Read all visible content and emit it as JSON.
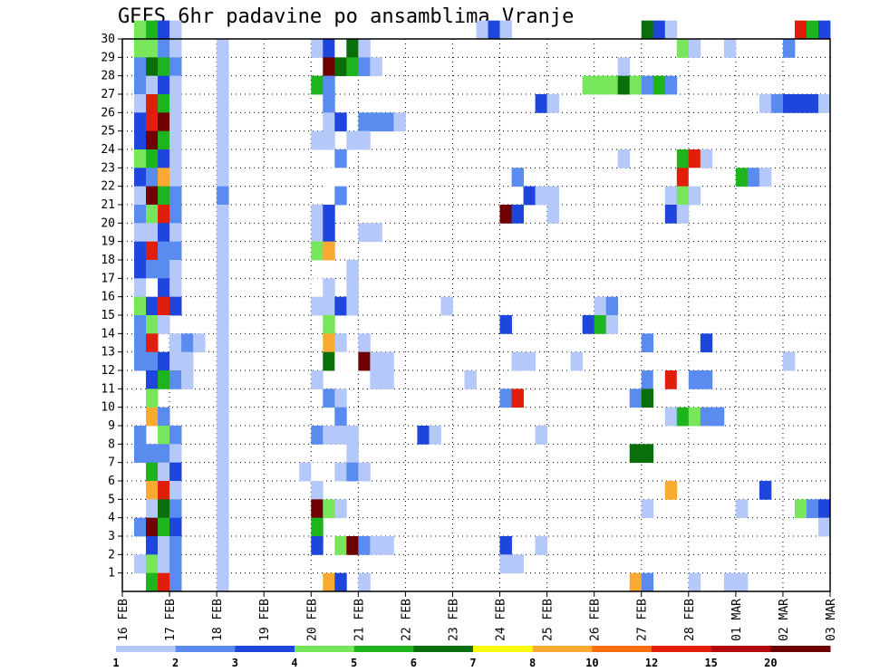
{
  "chart_data": {
    "type": "heatmap",
    "title": "GEFS 6hr padavine po ansamblima Vranje",
    "xlabel": "",
    "ylabel": "",
    "x_ticks": [
      "16 FEB",
      "17 FEB",
      "18 FEB",
      "19 FEB",
      "20 FEB",
      "21 FEB",
      "22 FEB",
      "23 FEB",
      "24 FEB",
      "25 FEB",
      "26 FEB",
      "27 FEB",
      "28 FEB",
      "01 MAR",
      "02 MAR",
      "03 MAR"
    ],
    "y_ticks": [
      "1",
      "2",
      "3",
      "4",
      "5",
      "6",
      "7",
      "8",
      "9",
      "10",
      "11",
      "12",
      "13",
      "14",
      "15",
      "16",
      "17",
      "18",
      "19",
      "20",
      "21",
      "22",
      "23",
      "24",
      "25",
      "26",
      "27",
      "28",
      "29",
      "30"
    ],
    "xlim": [
      0,
      60
    ],
    "ylim": [
      0,
      30
    ],
    "colorbar": {
      "labels": [
        "1",
        "2",
        "3",
        "4",
        "5",
        "6",
        "7",
        "8",
        "10",
        "12",
        "15",
        "20"
      ],
      "colors": [
        "#b4c8fa",
        "#5a8cf0",
        "#1e46dc",
        "#78e65a",
        "#1eb41e",
        "#0a6e0a",
        "#fafa0a",
        "#faaa32",
        "#fa6e0a",
        "#e11e0a",
        "#b40a0a",
        "#6e0000"
      ]
    },
    "cells": [
      [
        1,
        30,
        4
      ],
      [
        2,
        30,
        5
      ],
      [
        3,
        30,
        3
      ],
      [
        4,
        30,
        1
      ],
      [
        30,
        30,
        1
      ],
      [
        31,
        30,
        3
      ],
      [
        32,
        30,
        1
      ],
      [
        44,
        30,
        6
      ],
      [
        45,
        30,
        3
      ],
      [
        46,
        30,
        1
      ],
      [
        57,
        30,
        10
      ],
      [
        58,
        30,
        5
      ],
      [
        59,
        30,
        3
      ],
      [
        1,
        29,
        4
      ],
      [
        2,
        29,
        4
      ],
      [
        3,
        29,
        2
      ],
      [
        4,
        29,
        1
      ],
      [
        8,
        29,
        1
      ],
      [
        16,
        29,
        1
      ],
      [
        17,
        29,
        3
      ],
      [
        18,
        29,
        15
      ],
      [
        19,
        29,
        6
      ],
      [
        20,
        29,
        1
      ],
      [
        47,
        29,
        4
      ],
      [
        48,
        29,
        1
      ],
      [
        51,
        29,
        1
      ],
      [
        56,
        29,
        2
      ],
      [
        1,
        28,
        2
      ],
      [
        2,
        28,
        6
      ],
      [
        3,
        28,
        5
      ],
      [
        4,
        28,
        2
      ],
      [
        8,
        28,
        1
      ],
      [
        17,
        28,
        12
      ],
      [
        18,
        28,
        6
      ],
      [
        19,
        28,
        5
      ],
      [
        20,
        28,
        2
      ],
      [
        21,
        28,
        1
      ],
      [
        42,
        28,
        1
      ],
      [
        1,
        27,
        2
      ],
      [
        2,
        27,
        1
      ],
      [
        3,
        27,
        3
      ],
      [
        4,
        27,
        1
      ],
      [
        8,
        27,
        1
      ],
      [
        16,
        27,
        5
      ],
      [
        17,
        27,
        2
      ],
      [
        39,
        27,
        4
      ],
      [
        40,
        27,
        4
      ],
      [
        41,
        27,
        4
      ],
      [
        42,
        27,
        6
      ],
      [
        43,
        27,
        4
      ],
      [
        44,
        27,
        2
      ],
      [
        45,
        27,
        5
      ],
      [
        46,
        27,
        2
      ],
      [
        1,
        26,
        1
      ],
      [
        2,
        26,
        10
      ],
      [
        3,
        26,
        5
      ],
      [
        4,
        26,
        1
      ],
      [
        8,
        26,
        1
      ],
      [
        17,
        26,
        2
      ],
      [
        35,
        26,
        3
      ],
      [
        36,
        26,
        1
      ],
      [
        54,
        26,
        1
      ],
      [
        55,
        26,
        2
      ],
      [
        56,
        26,
        3
      ],
      [
        57,
        26,
        3
      ],
      [
        58,
        26,
        3
      ],
      [
        59,
        26,
        1
      ],
      [
        1,
        25,
        3
      ],
      [
        2,
        25,
        10
      ],
      [
        3,
        25,
        12
      ],
      [
        4,
        25,
        1
      ],
      [
        8,
        25,
        1
      ],
      [
        17,
        25,
        1
      ],
      [
        18,
        25,
        3
      ],
      [
        20,
        25,
        2
      ],
      [
        21,
        25,
        2
      ],
      [
        22,
        25,
        2
      ],
      [
        23,
        25,
        1
      ],
      [
        1,
        24,
        3
      ],
      [
        2,
        24,
        12
      ],
      [
        3,
        24,
        5
      ],
      [
        4,
        24,
        1
      ],
      [
        8,
        24,
        1
      ],
      [
        16,
        24,
        1
      ],
      [
        17,
        24,
        1
      ],
      [
        19,
        24,
        1
      ],
      [
        20,
        24,
        1
      ],
      [
        1,
        23,
        4
      ],
      [
        2,
        23,
        5
      ],
      [
        3,
        23,
        3
      ],
      [
        4,
        23,
        1
      ],
      [
        8,
        23,
        1
      ],
      [
        18,
        23,
        2
      ],
      [
        42,
        23,
        1
      ],
      [
        47,
        23,
        5
      ],
      [
        48,
        23,
        10
      ],
      [
        49,
        23,
        1
      ],
      [
        1,
        22,
        3
      ],
      [
        2,
        22,
        2
      ],
      [
        3,
        22,
        8
      ],
      [
        4,
        22,
        1
      ],
      [
        8,
        22,
        1
      ],
      [
        17,
        22,
        20
      ],
      [
        18,
        22,
        20
      ],
      [
        33,
        22,
        2
      ],
      [
        47,
        22,
        10
      ],
      [
        48,
        22,
        15
      ],
      [
        52,
        22,
        5
      ],
      [
        53,
        22,
        2
      ],
      [
        54,
        22,
        1
      ],
      [
        1,
        21,
        1
      ],
      [
        2,
        21,
        12
      ],
      [
        3,
        21,
        5
      ],
      [
        4,
        21,
        2
      ],
      [
        8,
        21,
        2
      ],
      [
        17,
        21,
        15
      ],
      [
        18,
        21,
        2
      ],
      [
        34,
        21,
        3
      ],
      [
        35,
        21,
        1
      ],
      [
        36,
        21,
        1
      ],
      [
        46,
        21,
        1
      ],
      [
        47,
        21,
        4
      ],
      [
        48,
        21,
        1
      ],
      [
        1,
        20,
        2
      ],
      [
        2,
        20,
        4
      ],
      [
        3,
        20,
        10
      ],
      [
        4,
        20,
        2
      ],
      [
        8,
        20,
        1
      ],
      [
        16,
        20,
        1
      ],
      [
        17,
        20,
        3
      ],
      [
        32,
        20,
        12
      ],
      [
        33,
        20,
        3
      ],
      [
        36,
        20,
        1
      ],
      [
        46,
        20,
        3
      ],
      [
        47,
        20,
        1
      ],
      [
        1,
        19,
        1
      ],
      [
        2,
        19,
        1
      ],
      [
        3,
        19,
        3
      ],
      [
        4,
        19,
        1
      ],
      [
        8,
        19,
        1
      ],
      [
        16,
        19,
        1
      ],
      [
        17,
        19,
        3
      ],
      [
        20,
        19,
        1
      ],
      [
        21,
        19,
        1
      ],
      [
        1,
        18,
        3
      ],
      [
        2,
        18,
        10
      ],
      [
        3,
        18,
        2
      ],
      [
        4,
        18,
        2
      ],
      [
        8,
        18,
        1
      ],
      [
        16,
        18,
        4
      ],
      [
        17,
        18,
        8
      ],
      [
        1,
        17,
        3
      ],
      [
        2,
        17,
        2
      ],
      [
        3,
        17,
        2
      ],
      [
        4,
        17,
        1
      ],
      [
        8,
        17,
        1
      ],
      [
        19,
        17,
        1
      ],
      [
        1,
        16,
        1
      ],
      [
        2,
        16,
        15
      ],
      [
        3,
        16,
        3
      ],
      [
        4,
        16,
        1
      ],
      [
        8,
        16,
        1
      ],
      [
        16,
        16,
        20
      ],
      [
        17,
        16,
        1
      ],
      [
        19,
        16,
        1
      ],
      [
        1,
        15,
        4
      ],
      [
        2,
        15,
        3
      ],
      [
        3,
        15,
        10
      ],
      [
        4,
        15,
        3
      ],
      [
        8,
        15,
        1
      ],
      [
        16,
        15,
        1
      ],
      [
        17,
        15,
        1
      ],
      [
        18,
        15,
        3
      ],
      [
        19,
        15,
        1
      ],
      [
        27,
        15,
        1
      ],
      [
        40,
        15,
        1
      ],
      [
        41,
        15,
        2
      ],
      [
        1,
        14,
        2
      ],
      [
        2,
        14,
        4
      ],
      [
        3,
        14,
        1
      ],
      [
        8,
        14,
        1
      ],
      [
        17,
        14,
        4
      ],
      [
        32,
        14,
        3
      ],
      [
        39,
        14,
        3
      ],
      [
        40,
        14,
        5
      ],
      [
        41,
        14,
        1
      ],
      [
        1,
        13,
        2
      ],
      [
        2,
        13,
        10
      ],
      [
        4,
        13,
        1
      ],
      [
        5,
        13,
        2
      ],
      [
        6,
        13,
        1
      ],
      [
        8,
        13,
        1
      ],
      [
        17,
        13,
        8
      ],
      [
        18,
        13,
        1
      ],
      [
        20,
        13,
        1
      ],
      [
        44,
        13,
        2
      ],
      [
        49,
        13,
        3
      ],
      [
        1,
        12,
        2
      ],
      [
        2,
        12,
        2
      ],
      [
        3,
        12,
        3
      ],
      [
        4,
        12,
        1
      ],
      [
        5,
        12,
        1
      ],
      [
        8,
        12,
        1
      ],
      [
        17,
        12,
        6
      ],
      [
        18,
        12,
        20
      ],
      [
        19,
        12,
        15
      ],
      [
        20,
        12,
        12
      ],
      [
        21,
        12,
        1
      ],
      [
        22,
        12,
        1
      ],
      [
        33,
        12,
        1
      ],
      [
        34,
        12,
        1
      ],
      [
        38,
        12,
        1
      ],
      [
        56,
        12,
        1
      ],
      [
        2,
        11,
        3
      ],
      [
        3,
        11,
        5
      ],
      [
        4,
        11,
        2
      ],
      [
        5,
        11,
        1
      ],
      [
        8,
        11,
        1
      ],
      [
        16,
        11,
        1
      ],
      [
        21,
        11,
        1
      ],
      [
        22,
        11,
        1
      ],
      [
        29,
        11,
        1
      ],
      [
        44,
        11,
        2
      ],
      [
        45,
        11,
        15
      ],
      [
        46,
        11,
        10
      ],
      [
        47,
        11,
        15
      ],
      [
        48,
        11,
        2
      ],
      [
        49,
        11,
        2
      ],
      [
        2,
        10,
        4
      ],
      [
        8,
        10,
        1
      ],
      [
        17,
        10,
        2
      ],
      [
        18,
        10,
        1
      ],
      [
        32,
        10,
        2
      ],
      [
        33,
        10,
        10
      ],
      [
        43,
        10,
        2
      ],
      [
        44,
        10,
        6
      ],
      [
        2,
        9,
        8
      ],
      [
        3,
        9,
        2
      ],
      [
        8,
        9,
        1
      ],
      [
        18,
        9,
        2
      ],
      [
        46,
        9,
        1
      ],
      [
        47,
        9,
        5
      ],
      [
        48,
        9,
        4
      ],
      [
        49,
        9,
        2
      ],
      [
        50,
        9,
        2
      ],
      [
        1,
        8,
        2
      ],
      [
        3,
        8,
        4
      ],
      [
        4,
        8,
        2
      ],
      [
        8,
        8,
        1
      ],
      [
        16,
        8,
        2
      ],
      [
        17,
        8,
        1
      ],
      [
        18,
        8,
        1
      ],
      [
        19,
        8,
        1
      ],
      [
        25,
        8,
        3
      ],
      [
        26,
        8,
        1
      ],
      [
        35,
        8,
        1
      ],
      [
        1,
        7,
        2
      ],
      [
        2,
        7,
        2
      ],
      [
        3,
        7,
        2
      ],
      [
        4,
        7,
        1
      ],
      [
        8,
        7,
        1
      ],
      [
        19,
        7,
        1
      ],
      [
        43,
        7,
        6
      ],
      [
        44,
        7,
        6
      ],
      [
        2,
        6,
        5
      ],
      [
        3,
        6,
        1
      ],
      [
        4,
        6,
        3
      ],
      [
        8,
        6,
        1
      ],
      [
        15,
        6,
        1
      ],
      [
        16,
        6,
        15
      ],
      [
        18,
        6,
        1
      ],
      [
        19,
        6,
        2
      ],
      [
        20,
        6,
        1
      ],
      [
        2,
        5,
        8
      ],
      [
        3,
        5,
        10
      ],
      [
        4,
        5,
        1
      ],
      [
        8,
        5,
        1
      ],
      [
        16,
        5,
        1
      ],
      [
        46,
        5,
        8
      ],
      [
        54,
        5,
        3
      ],
      [
        2,
        4,
        1
      ],
      [
        3,
        4,
        6
      ],
      [
        4,
        4,
        2
      ],
      [
        8,
        4,
        1
      ],
      [
        16,
        4,
        12
      ],
      [
        17,
        4,
        4
      ],
      [
        18,
        4,
        1
      ],
      [
        44,
        4,
        1
      ],
      [
        52,
        4,
        1
      ],
      [
        57,
        4,
        4
      ],
      [
        58,
        4,
        2
      ],
      [
        59,
        4,
        3
      ],
      [
        1,
        3,
        2
      ],
      [
        2,
        3,
        12
      ],
      [
        3,
        3,
        5
      ],
      [
        4,
        3,
        3
      ],
      [
        8,
        3,
        1
      ],
      [
        16,
        3,
        5
      ],
      [
        59,
        3,
        1
      ],
      [
        2,
        2,
        3
      ],
      [
        3,
        2,
        1
      ],
      [
        4,
        2,
        2
      ],
      [
        8,
        2,
        1
      ],
      [
        16,
        2,
        3
      ],
      [
        18,
        2,
        4
      ],
      [
        19,
        2,
        12
      ],
      [
        20,
        2,
        2
      ],
      [
        21,
        2,
        1
      ],
      [
        22,
        2,
        1
      ],
      [
        32,
        2,
        3
      ],
      [
        35,
        2,
        1
      ],
      [
        1,
        1,
        1
      ],
      [
        2,
        1,
        4
      ],
      [
        3,
        1,
        1
      ],
      [
        4,
        1,
        2
      ],
      [
        8,
        1,
        1
      ],
      [
        32,
        1,
        1
      ],
      [
        33,
        1,
        1
      ],
      [
        2,
        0,
        5
      ],
      [
        3,
        0,
        10
      ],
      [
        4,
        0,
        2
      ],
      [
        8,
        0,
        1
      ],
      [
        17,
        0,
        8
      ],
      [
        18,
        0,
        3
      ],
      [
        20,
        0,
        1
      ],
      [
        43,
        0,
        8
      ],
      [
        44,
        0,
        2
      ],
      [
        48,
        0,
        1
      ],
      [
        51,
        0,
        1
      ],
      [
        52,
        0,
        1
      ]
    ]
  }
}
